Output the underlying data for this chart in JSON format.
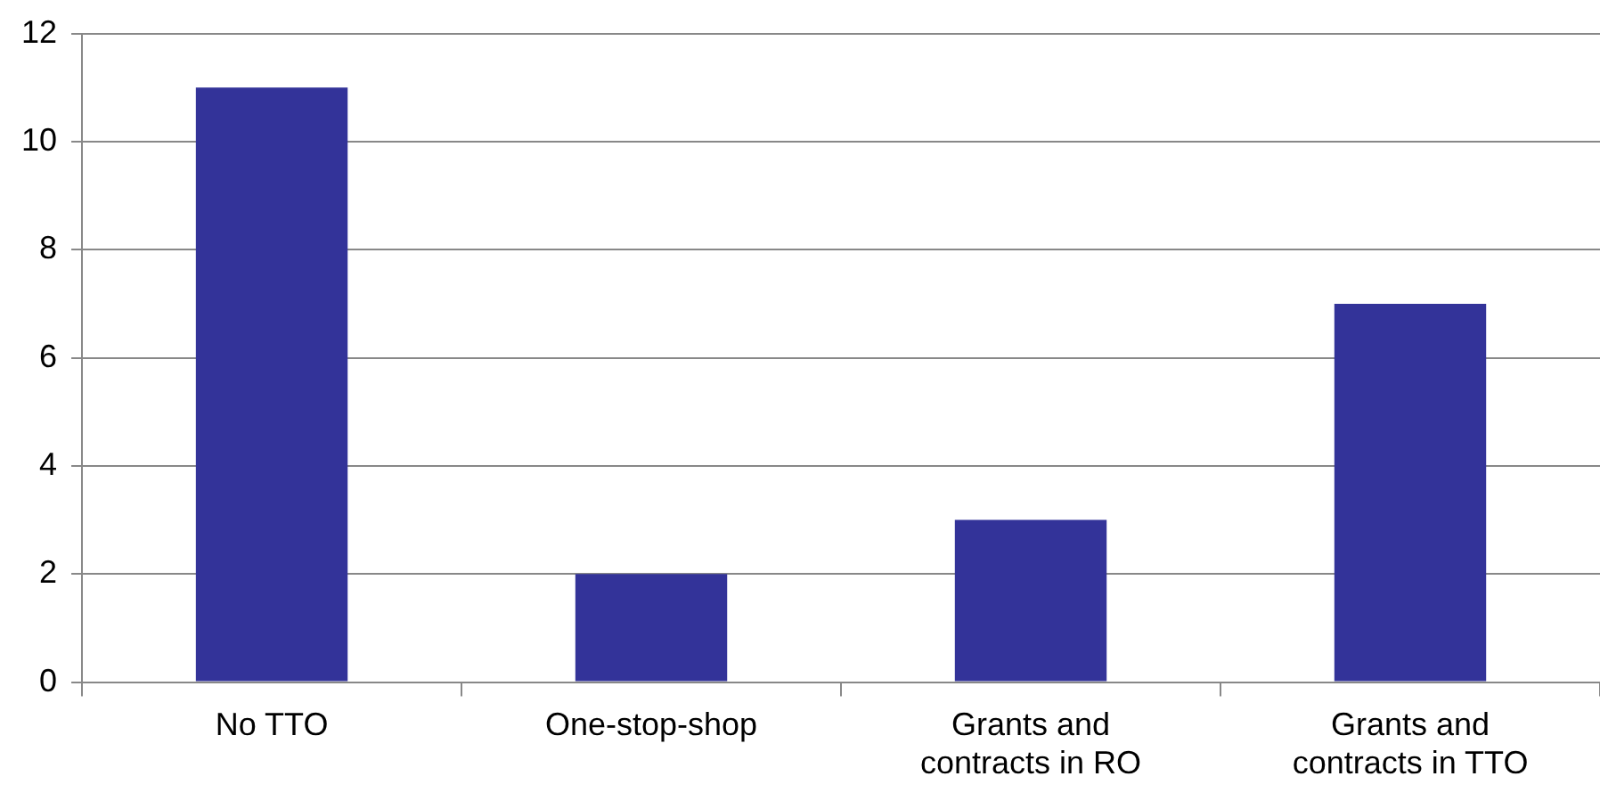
{
  "chart_data": {
    "type": "bar",
    "categories": [
      "No TTO",
      "One-stop-shop",
      "Grants and contracts in RO",
      "Grants and contracts in TTO"
    ],
    "values": [
      11,
      2,
      3,
      7
    ],
    "color": "#333399",
    "ylim": [
      0,
      12
    ],
    "yticks": [
      0,
      2,
      4,
      6,
      8,
      10,
      12
    ],
    "grid": "y",
    "legend": false
  }
}
